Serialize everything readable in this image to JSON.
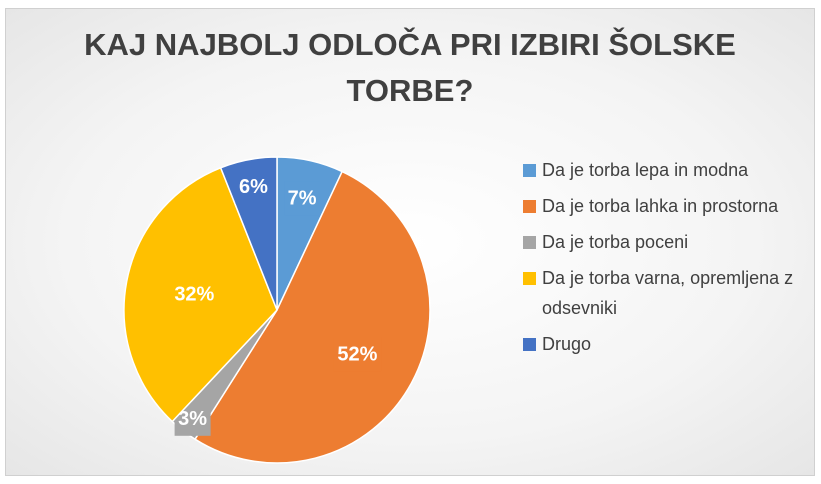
{
  "chart_data": {
    "type": "pie",
    "title": "KAJ NAJBOLJ ODLOČA PRI IZBIRI ŠOLSKE TORBE?",
    "categories": [
      "Da je torba lepa in modna",
      "Da je torba lahka in prostorna",
      "Da je torba poceni",
      "Da je torba varna, opremljena z odsevniki",
      "Drugo"
    ],
    "values": [
      7,
      52,
      3,
      32,
      6
    ],
    "value_labels": [
      "7%",
      "52%",
      "3%",
      "32%",
      "6%"
    ],
    "colors": [
      "#5b9bd5",
      "#ed7d31",
      "#a5a5a5",
      "#ffc000",
      "#4472c4"
    ],
    "legend": "right"
  }
}
